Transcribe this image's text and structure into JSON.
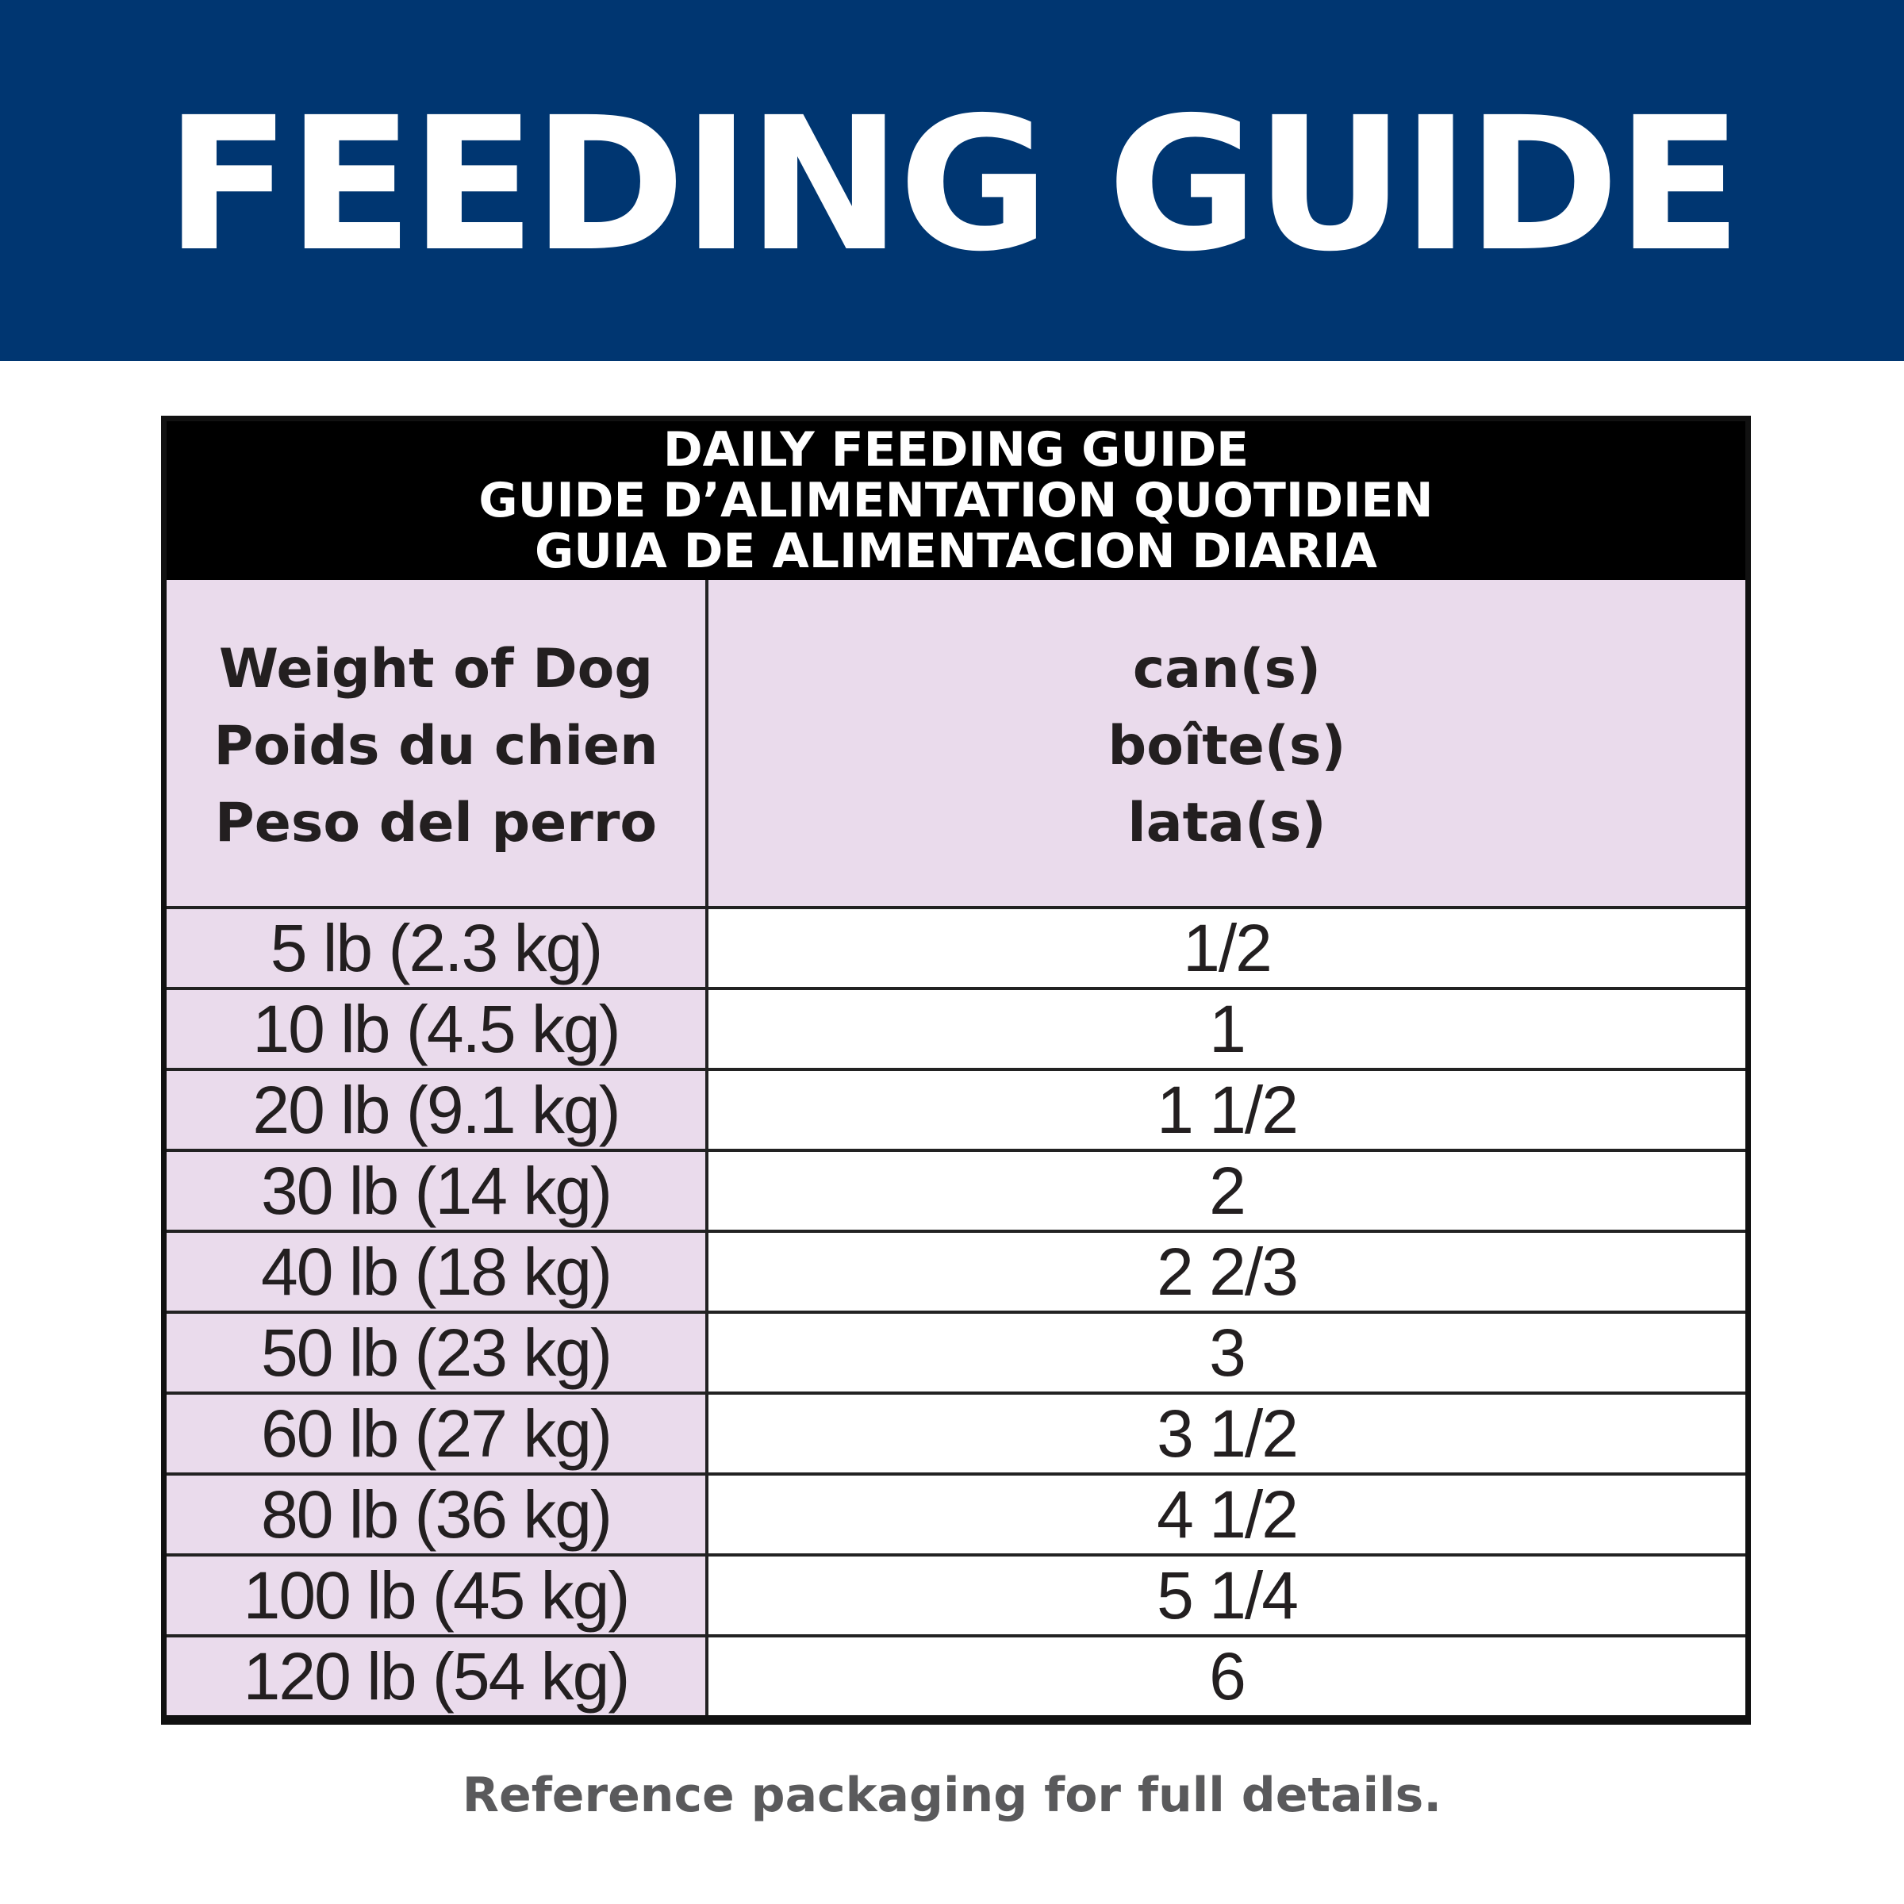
{
  "banner": {
    "title": "FEEDING GUIDE",
    "background_color": "#003671"
  },
  "table": {
    "title_lines": [
      "DAILY FEEDING GUIDE",
      "GUIDE D’ALIMENTATION QUOTIDIEN",
      "GUIA DE ALIMENTACION DIARIA"
    ],
    "headers": {
      "weight": [
        "Weight of Dog",
        "Poids du chien",
        "Peso del perro"
      ],
      "cans": [
        "can(s)",
        "boîte(s)",
        "lata(s)"
      ]
    },
    "rows": [
      {
        "weight": "5 lb (2.3 kg)",
        "cans": "1/2"
      },
      {
        "weight": "10 lb (4.5 kg)",
        "cans": "1"
      },
      {
        "weight": "20 lb (9.1 kg)",
        "cans": "1 1/2"
      },
      {
        "weight": "30 lb (14 kg)",
        "cans": "2"
      },
      {
        "weight": "40 lb (18 kg)",
        "cans": "2 2/3"
      },
      {
        "weight": "50 lb (23 kg)",
        "cans": "3"
      },
      {
        "weight": "60 lb (27 kg)",
        "cans": "3 1/2"
      },
      {
        "weight": "80 lb (36 kg)",
        "cans": "4 1/2"
      },
      {
        "weight": "100 lb (45 kg)",
        "cans": "5 1/4"
      },
      {
        "weight": "120 lb (54 kg)",
        "cans": "6"
      }
    ],
    "header_color": "#eadbec"
  },
  "footnote": "Reference packaging for full details."
}
